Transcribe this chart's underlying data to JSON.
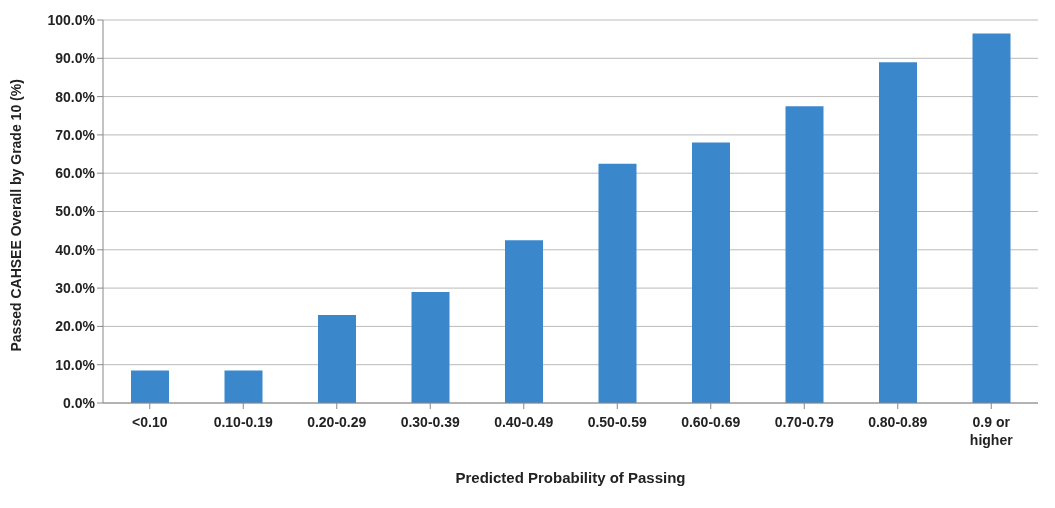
{
  "chart_data": {
    "type": "bar",
    "xlabel": "Predicted Probability of Passing",
    "ylabel": "Passed CAHSEE Overall by Grade 10  (%)",
    "categories": [
      "<0.10",
      "0.10-0.19",
      "0.20-0.29",
      "0.30-0.39",
      "0.40-0.49",
      "0.50-0.59",
      "0.60-0.69",
      "0.70-0.79",
      "0.80-0.89",
      "0.9 or higher"
    ],
    "values": [
      8.5,
      8.5,
      23,
      29,
      42.5,
      62.5,
      68,
      77.5,
      89,
      96.5
    ],
    "color": "#3b87cc",
    "ylim": [
      0,
      100
    ],
    "yticks": [
      {
        "value": 0,
        "label": "0.0%"
      },
      {
        "value": 10,
        "label": "10.0%"
      },
      {
        "value": 20,
        "label": "20.0%"
      },
      {
        "value": 30,
        "label": "30.0%"
      },
      {
        "value": 40,
        "label": "40.0%"
      },
      {
        "value": 50,
        "label": "50.0%"
      },
      {
        "value": 60,
        "label": "60.0%"
      },
      {
        "value": 70,
        "label": "70.0%"
      },
      {
        "value": 80,
        "label": "80.0%"
      },
      {
        "value": 90,
        "label": "90.0%"
      },
      {
        "value": 100,
        "label": "100.0%"
      }
    ],
    "grid": "y",
    "legend": false
  }
}
